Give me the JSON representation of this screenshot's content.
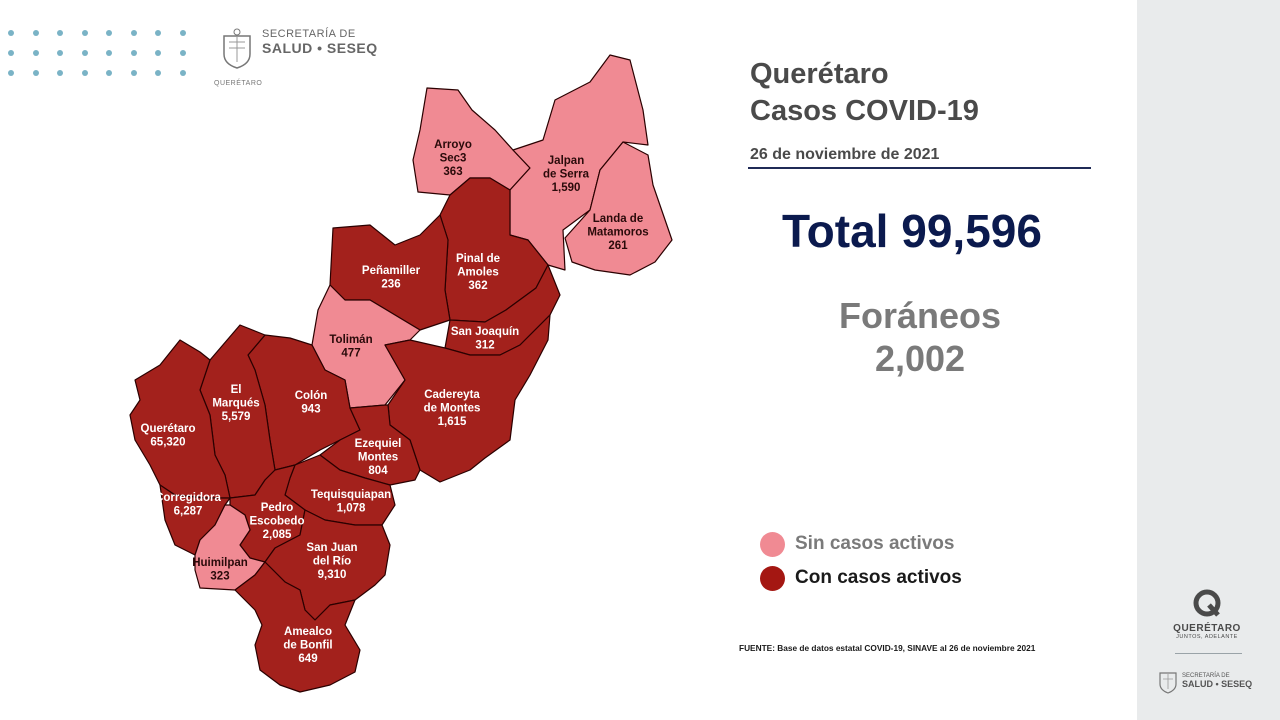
{
  "header": {
    "agency_line1": "SECRETARÍA DE",
    "agency_line2": "SALUD • SESEQ",
    "agency_line3": "QUERÉTARO"
  },
  "title_line1": "Querétaro",
  "title_line2": "Casos COVID-19",
  "date": "26 de noviembre de 2021",
  "total_label": "Total 99,596",
  "foraneos_label": "Foráneos",
  "foraneos_value": "2,002",
  "legend": [
    {
      "label": "Sin casos activos",
      "color": "#f08a93"
    },
    {
      "label": "Con casos activos",
      "color": "#a41712"
    }
  ],
  "source": "FUENTE: Base de datos estatal  COVID-19,  SINAVE  al 26 de noviembre 2021",
  "colors": {
    "active": "#a3211c",
    "inactive": "#f08a93",
    "title": "#4a4a4a",
    "total": "#0b1a4e",
    "dots": "#7ab3c6"
  },
  "municipalities": [
    {
      "id": "arroyo-seco",
      "name_lines": [
        "Arroyo",
        "Sec3"
      ],
      "cases": "363",
      "active": false
    },
    {
      "id": "jalpan",
      "name_lines": [
        "Jalpan",
        "de Serra"
      ],
      "cases": "1,590",
      "active": false
    },
    {
      "id": "landa",
      "name_lines": [
        "Landa de",
        "Matamoros"
      ],
      "cases": "261",
      "active": false
    },
    {
      "id": "pinal",
      "name_lines": [
        "Pinal de",
        "Amoles"
      ],
      "cases": "362",
      "active": true
    },
    {
      "id": "penamiller",
      "name_lines": [
        "Peñamiller"
      ],
      "cases": "236",
      "active": true
    },
    {
      "id": "san-joaquin",
      "name_lines": [
        "San Joaquín"
      ],
      "cases": "312",
      "active": true
    },
    {
      "id": "toliman",
      "name_lines": [
        "Tolimán"
      ],
      "cases": "477",
      "active": false
    },
    {
      "id": "cadereyta",
      "name_lines": [
        "Cadereyta",
        "de Montes"
      ],
      "cases": "1,615",
      "active": true
    },
    {
      "id": "colon",
      "name_lines": [
        "Colón"
      ],
      "cases": "943",
      "active": true
    },
    {
      "id": "el-marques",
      "name_lines": [
        "El",
        "Marqués"
      ],
      "cases": "5,579",
      "active": true
    },
    {
      "id": "queretaro",
      "name_lines": [
        "Querétaro"
      ],
      "cases": "65,320",
      "active": true
    },
    {
      "id": "ezequiel-montes",
      "name_lines": [
        "Ezequiel",
        "Montes"
      ],
      "cases": "804",
      "active": true
    },
    {
      "id": "tequisquiapan",
      "name_lines": [
        "Tequisquiapan"
      ],
      "cases": "1,078",
      "active": true
    },
    {
      "id": "corregidora",
      "name_lines": [
        "Corregidora"
      ],
      "cases": "6,287",
      "active": true
    },
    {
      "id": "pedro-escobedo",
      "name_lines": [
        "Pedro",
        "Escobedo"
      ],
      "cases": "2,085",
      "active": true
    },
    {
      "id": "huimilpan",
      "name_lines": [
        "Huimilpan"
      ],
      "cases": "323",
      "active": false
    },
    {
      "id": "san-juan",
      "name_lines": [
        "San Juan",
        "del Río"
      ],
      "cases": "9,310",
      "active": true
    },
    {
      "id": "amealco",
      "name_lines": [
        "Amealco",
        "de Bonfil"
      ],
      "cases": "649",
      "active": true
    }
  ],
  "brand": {
    "name": "QUERÉTARO",
    "tagline": "JUNTOS, ADELANTE",
    "footer_line1": "SECRETARÍA DE",
    "footer_line2": "SALUD • SESEQ"
  }
}
